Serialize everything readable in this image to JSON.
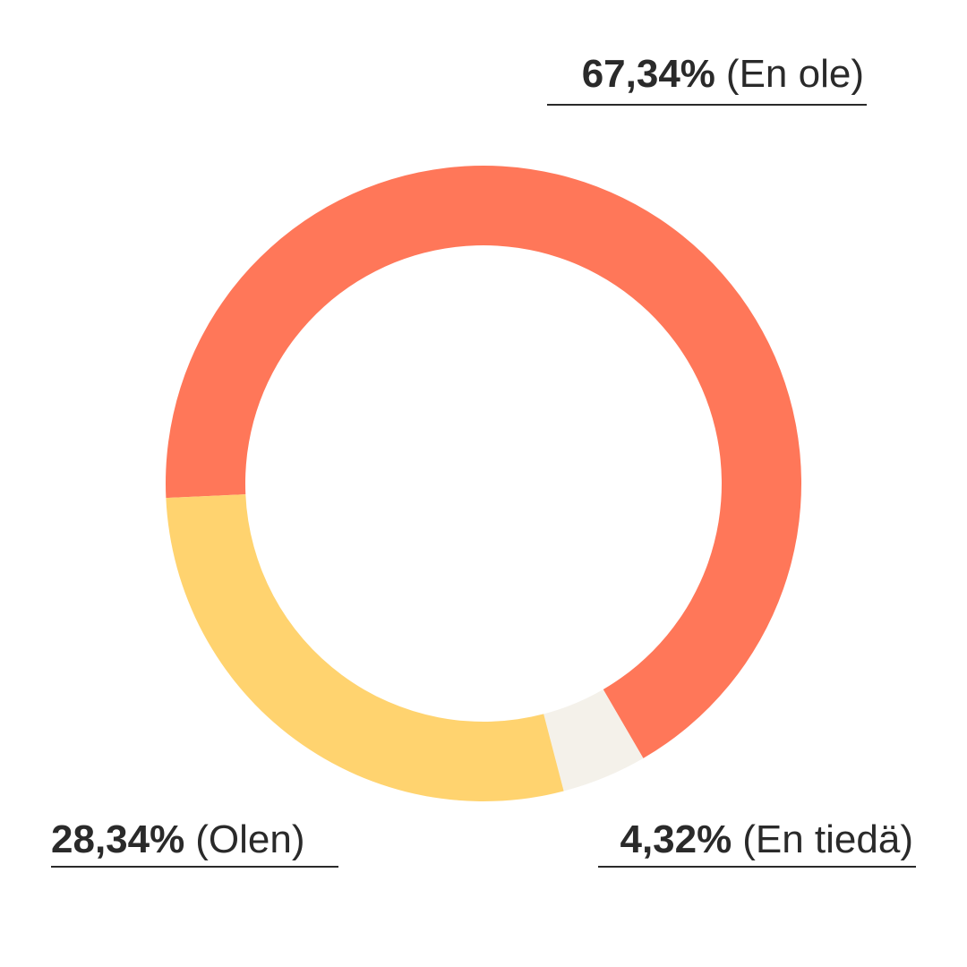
{
  "chart_data": {
    "type": "donut",
    "categories": [
      "(En ole)",
      "(En tiedä)",
      "(Olen)"
    ],
    "values": [
      67.34,
      4.32,
      28.34
    ],
    "value_labels": [
      "67,34%",
      "4,32%",
      "28,34%"
    ],
    "colors": [
      "#ff7759",
      "#f4f1ea",
      "#ffd36f"
    ]
  }
}
